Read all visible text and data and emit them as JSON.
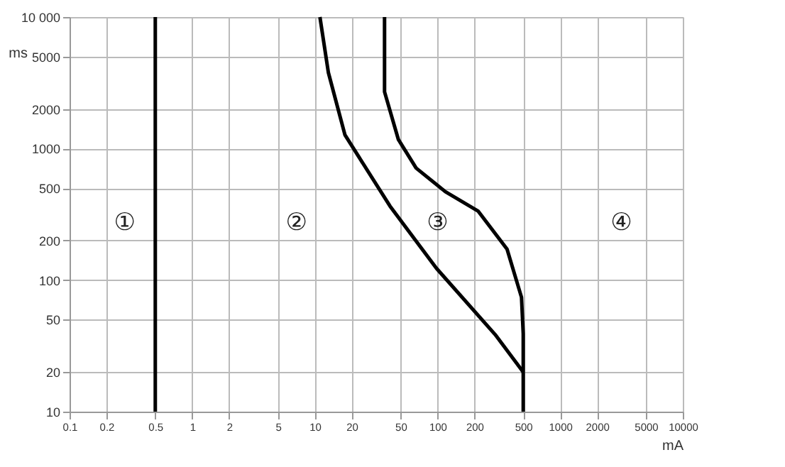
{
  "chart_data": {
    "type": "line",
    "xlabel": "mA",
    "ylabel": "ms",
    "log": "xy",
    "grid": true,
    "marker": "none",
    "line_style": "solid",
    "xlim": [
      0.1,
      10000
    ],
    "xticks": [
      0.1,
      0.2,
      0.5,
      1,
      2,
      5,
      10,
      20,
      50,
      100,
      200,
      500,
      1000,
      2000,
      5000,
      10000
    ],
    "ylim": [
      10,
      10000
    ],
    "yticks": [
      10,
      20,
      50,
      100,
      200,
      500,
      1000,
      2000,
      5000,
      {
        "value": 10000,
        "label": "10 000"
      }
    ],
    "series": [
      {
        "color": "#000000",
        "x": [
          0.5,
          0.5
        ],
        "values": [
          10,
          10000
        ]
      },
      {
        "color": "#000000",
        "x": [
          11,
          12.9,
          17.6,
          41,
          98,
          295,
          500
        ],
        "values": [
          10000,
          3770,
          1270,
          365,
          123,
          38.6,
          20
        ]
      },
      {
        "color": "#000000",
        "x": [
          37,
          37,
          48,
          67,
          116,
          214,
          369,
          484,
          500,
          500
        ],
        "values": [
          10000,
          2700,
          1170,
          710,
          470,
          335,
          172,
          74,
          39,
          10
        ]
      }
    ],
    "annotations": [
      "①",
      "②",
      "③",
      "④"
    ]
  }
}
